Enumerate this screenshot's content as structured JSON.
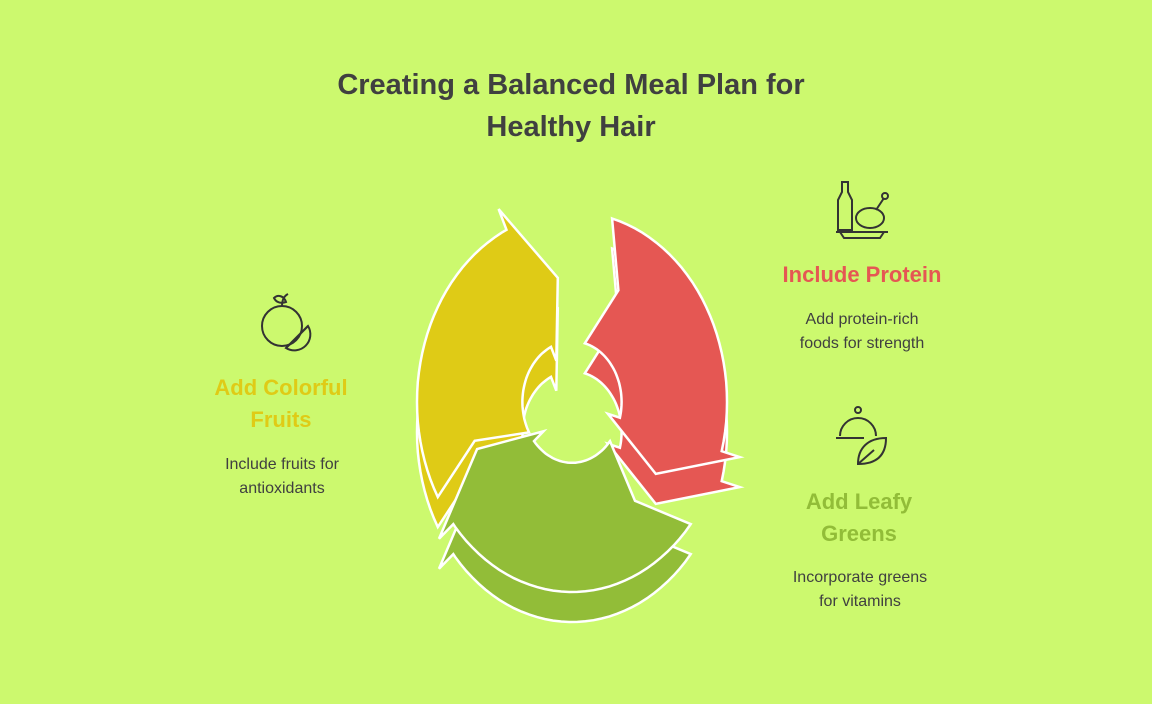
{
  "title_line1": "Creating a Balanced Meal Plan for",
  "title_line2": "Healthy Hair",
  "colors": {
    "background": "#CCF96E",
    "protein": "#E55753",
    "greens": "#92BD38",
    "fruits": "#DFCB16",
    "text": "#404040"
  },
  "items": [
    {
      "icon": "chicken-plate-icon",
      "title": "Include Protein",
      "desc_line1": "Add protein-rich",
      "desc_line2": "foods for strength"
    },
    {
      "icon": "cloche-leaf-icon",
      "title_line1": "Add Leafy",
      "title_line2": "Greens",
      "desc_line1": "Incorporate greens",
      "desc_line2": "for vitamins"
    },
    {
      "icon": "orange-slice-icon",
      "title_line1": "Add Colorful",
      "title_line2": "Fruits",
      "desc_line1": "Include fruits for",
      "desc_line2": "antioxidants"
    }
  ]
}
